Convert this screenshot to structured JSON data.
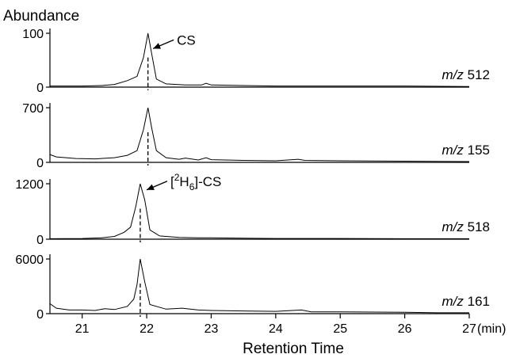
{
  "chart_data": {
    "type": "line",
    "ylabel": "Abundance",
    "xlabel": "Retention Time",
    "x_unit": "(min)",
    "xlim": [
      20.5,
      27.0
    ],
    "x_ticks": [
      21,
      22,
      23,
      24,
      25,
      26,
      27
    ],
    "x_tick_labels": [
      "21",
      "22",
      "23",
      "24",
      "25",
      "26",
      "27"
    ],
    "panels": [
      {
        "label_italic": "m/z",
        "label_value": "512",
        "y_ticks": [
          0,
          100
        ],
        "y_tick_labels": [
          "0",
          "100"
        ],
        "ylim": [
          0,
          100
        ],
        "dashed_line_x": 22.02,
        "annotation": {
          "text": "CS",
          "arrow_to": [
            22.05,
            70
          ]
        },
        "series": [
          [
            20.5,
            2
          ],
          [
            21.0,
            2
          ],
          [
            21.3,
            3
          ],
          [
            21.5,
            5
          ],
          [
            21.7,
            12
          ],
          [
            21.85,
            20
          ],
          [
            21.95,
            55
          ],
          [
            22.02,
            100
          ],
          [
            22.08,
            60
          ],
          [
            22.15,
            15
          ],
          [
            22.3,
            6
          ],
          [
            22.6,
            4
          ],
          [
            22.85,
            4
          ],
          [
            22.92,
            7
          ],
          [
            23.0,
            4
          ],
          [
            23.5,
            3
          ],
          [
            24.0,
            2
          ],
          [
            25.0,
            2
          ],
          [
            26.0,
            2
          ],
          [
            27.0,
            1
          ]
        ]
      },
      {
        "label_italic": "m/z",
        "label_value": "155",
        "y_ticks": [
          0,
          700
        ],
        "y_tick_labels": [
          "0",
          "700"
        ],
        "ylim": [
          0,
          700
        ],
        "dashed_line_x": 22.02,
        "series": [
          [
            20.5,
            100
          ],
          [
            20.6,
            70
          ],
          [
            20.9,
            50
          ],
          [
            21.2,
            45
          ],
          [
            21.5,
            60
          ],
          [
            21.7,
            90
          ],
          [
            21.85,
            150
          ],
          [
            21.95,
            420
          ],
          [
            22.02,
            700
          ],
          [
            22.08,
            430
          ],
          [
            22.15,
            150
          ],
          [
            22.3,
            60
          ],
          [
            22.5,
            40
          ],
          [
            22.6,
            55
          ],
          [
            22.8,
            30
          ],
          [
            22.92,
            60
          ],
          [
            23.0,
            35
          ],
          [
            23.5,
            25
          ],
          [
            24.0,
            20
          ],
          [
            24.35,
            40
          ],
          [
            24.45,
            25
          ],
          [
            25.0,
            20
          ],
          [
            26.0,
            15
          ],
          [
            27.0,
            10
          ]
        ]
      },
      {
        "label_italic": "m/z",
        "label_value": "518",
        "y_ticks": [
          0,
          1200
        ],
        "y_tick_labels": [
          "0",
          "1200"
        ],
        "ylim": [
          0,
          1200
        ],
        "dashed_line_x": 21.9,
        "annotation": {
          "text": "[2H6]-CS",
          "arrow_to": [
            21.95,
            1050
          ]
        },
        "series": [
          [
            20.5,
            10
          ],
          [
            21.0,
            15
          ],
          [
            21.3,
            30
          ],
          [
            21.5,
            60
          ],
          [
            21.65,
            150
          ],
          [
            21.75,
            260
          ],
          [
            21.83,
            700
          ],
          [
            21.9,
            1200
          ],
          [
            21.97,
            850
          ],
          [
            22.05,
            200
          ],
          [
            22.2,
            70
          ],
          [
            22.5,
            40
          ],
          [
            22.8,
            30
          ],
          [
            23.0,
            30
          ],
          [
            23.5,
            20
          ],
          [
            24.0,
            15
          ],
          [
            25.0,
            15
          ],
          [
            26.0,
            10
          ],
          [
            27.0,
            10
          ]
        ]
      },
      {
        "label_italic": "m/z",
        "label_value": "161",
        "y_ticks": [
          0,
          6000
        ],
        "y_tick_labels": [
          "0",
          "6000"
        ],
        "ylim": [
          0,
          6000
        ],
        "dashed_line_x": 21.9,
        "series": [
          [
            20.5,
            1100
          ],
          [
            20.6,
            600
          ],
          [
            20.8,
            400
          ],
          [
            21.0,
            400
          ],
          [
            21.2,
            350
          ],
          [
            21.35,
            550
          ],
          [
            21.5,
            450
          ],
          [
            21.7,
            800
          ],
          [
            21.8,
            1600
          ],
          [
            21.85,
            3200
          ],
          [
            21.9,
            6000
          ],
          [
            21.97,
            3500
          ],
          [
            22.05,
            1000
          ],
          [
            22.3,
            500
          ],
          [
            22.55,
            600
          ],
          [
            22.8,
            400
          ],
          [
            23.0,
            350
          ],
          [
            23.5,
            300
          ],
          [
            24.0,
            250
          ],
          [
            24.4,
            400
          ],
          [
            24.55,
            200
          ],
          [
            25.0,
            200
          ],
          [
            26.0,
            150
          ],
          [
            26.5,
            100
          ],
          [
            27.0,
            100
          ]
        ]
      }
    ]
  }
}
